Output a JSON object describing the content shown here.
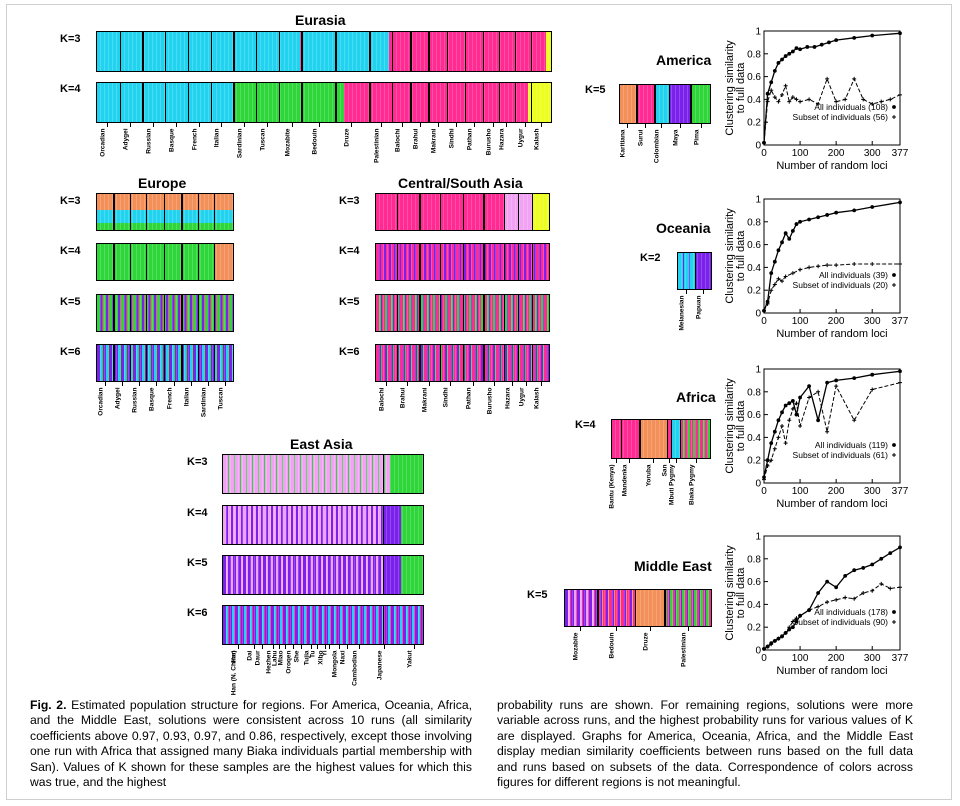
{
  "regions": {
    "eurasia": {
      "title": "Eurasia",
      "k_labels": [
        "K=3",
        "K=4"
      ],
      "populations": [
        "Orcadian",
        "Adygei",
        "Russian",
        "Basque",
        "French",
        "Italian",
        "Sardinian",
        "Tuscan",
        "Mozabite",
        "Bedouin",
        "Druze",
        "Palestinian",
        "Balochi",
        "Brahui",
        "Makrani",
        "Sindhi",
        "Pathan",
        "Burusho",
        "Hazara",
        "Uygur",
        "Kalash"
      ]
    },
    "europe": {
      "title": "Europe",
      "k_labels": [
        "K=3",
        "K=4",
        "K=5",
        "K=6"
      ],
      "populations": [
        "Orcadian",
        "Adygei",
        "Russian",
        "Basque",
        "French",
        "Italian",
        "Sardinian",
        "Tuscan"
      ]
    },
    "central_south_asia": {
      "title": "Central/South Asia",
      "k_labels": [
        "K=3",
        "K=4",
        "K=5",
        "K=6"
      ],
      "populations": [
        "Balochi",
        "Brahui",
        "Makrani",
        "Sindhi",
        "Pathan",
        "Burusho",
        "Hazara",
        "Uygur",
        "Kalash"
      ]
    },
    "east_asia": {
      "title": "East Asia",
      "k_labels": [
        "K=3",
        "K=4",
        "K=5",
        "K=6"
      ],
      "populations": [
        "Han",
        "Han (N. China)",
        "Dai",
        "Daur",
        "Hezhen",
        "Lahu",
        "Miao",
        "Oroqen",
        "She",
        "Tujia",
        "Tu",
        "Xibo",
        "Yi",
        "Mongola",
        "Naxi",
        "Cambodian",
        "Japanese",
        "Yakut"
      ]
    },
    "america": {
      "title": "America",
      "k_label": "K=5",
      "populations": [
        "Karitiana",
        "Surui",
        "Colombian",
        "Maya",
        "Pima"
      ]
    },
    "oceania": {
      "title": "Oceania",
      "k_label": "K=2",
      "populations": [
        "Melanesian",
        "Papuan"
      ]
    },
    "africa": {
      "title": "Africa",
      "k_label": "K=4",
      "populations": [
        "Bantu (Kenya)",
        "Mandenka",
        "Yoruba",
        "San",
        "Mbuti Pygmy",
        "Biaka Pygmy"
      ]
    },
    "middle_east": {
      "title": "Middle East",
      "k_label": "K=5",
      "populations": [
        "Mozabite",
        "Bedouin",
        "Druze",
        "Palestinian"
      ]
    }
  },
  "chart_data": [
    {
      "type": "line",
      "region": "America",
      "ylabel": "Clustering similarity to full data",
      "xlabel": "Number of random loci",
      "xticks": [
        "0",
        "100",
        "200",
        "300",
        "377"
      ],
      "yticks": [
        "0",
        "0.2",
        "0.4",
        "0.6",
        "0.8",
        "1"
      ],
      "xlim": [
        0,
        377
      ],
      "ylim": [
        0,
        1
      ],
      "series": [
        {
          "name": "All individuals (108)",
          "style": "solid",
          "x": [
            0,
            10,
            20,
            30,
            40,
            50,
            60,
            70,
            80,
            90,
            100,
            120,
            140,
            160,
            180,
            200,
            250,
            300,
            377
          ],
          "y": [
            0.02,
            0.45,
            0.55,
            0.65,
            0.72,
            0.75,
            0.78,
            0.8,
            0.82,
            0.85,
            0.84,
            0.86,
            0.86,
            0.88,
            0.9,
            0.92,
            0.94,
            0.96,
            0.98
          ]
        },
        {
          "name": "Subset of individuals (56)",
          "style": "dashed",
          "x": [
            0,
            10,
            20,
            30,
            40,
            50,
            60,
            70,
            80,
            90,
            100,
            125,
            150,
            175,
            200,
            225,
            250,
            275,
            300,
            325,
            350,
            377
          ],
          "y": [
            0.02,
            0.38,
            0.48,
            0.42,
            0.38,
            0.44,
            0.52,
            0.38,
            0.42,
            0.4,
            0.38,
            0.4,
            0.36,
            0.58,
            0.38,
            0.4,
            0.58,
            0.4,
            0.36,
            0.38,
            0.4,
            0.44
          ]
        }
      ]
    },
    {
      "type": "line",
      "region": "Oceania",
      "ylabel": "Clustering similarity to full data",
      "xlabel": "Number of random loci",
      "xticks": [
        "0",
        "100",
        "200",
        "300",
        "377"
      ],
      "yticks": [
        "0",
        "0.2",
        "0.4",
        "0.6",
        "0.8",
        "1"
      ],
      "xlim": [
        0,
        377
      ],
      "ylim": [
        0,
        1
      ],
      "series": [
        {
          "name": "All individuals (39)",
          "style": "solid",
          "x": [
            0,
            10,
            20,
            30,
            40,
            50,
            60,
            70,
            80,
            90,
            100,
            125,
            150,
            175,
            200,
            250,
            300,
            377
          ],
          "y": [
            0.02,
            0.1,
            0.35,
            0.45,
            0.55,
            0.62,
            0.7,
            0.65,
            0.72,
            0.78,
            0.8,
            0.82,
            0.84,
            0.86,
            0.88,
            0.9,
            0.93,
            0.97
          ]
        },
        {
          "name": "Subset of individuals (20)",
          "style": "dashed",
          "x": [
            0,
            10,
            20,
            30,
            40,
            50,
            60,
            80,
            100,
            125,
            150,
            175,
            200,
            250,
            300,
            377
          ],
          "y": [
            0.02,
            0.08,
            0.2,
            0.25,
            0.3,
            0.28,
            0.32,
            0.35,
            0.38,
            0.4,
            0.41,
            0.42,
            0.42,
            0.43,
            0.43,
            0.43
          ]
        }
      ]
    },
    {
      "type": "line",
      "region": "Africa",
      "ylabel": "Clustering similarity to full data",
      "xlabel": "Number of random loci",
      "xticks": [
        "0",
        "100",
        "200",
        "300",
        "377"
      ],
      "yticks": [
        "0",
        "0.2",
        "0.4",
        "0.6",
        "0.8",
        "1"
      ],
      "xlim": [
        0,
        377
      ],
      "ylim": [
        0,
        1
      ],
      "series": [
        {
          "name": "All individuals (119)",
          "style": "solid",
          "x": [
            0,
            10,
            20,
            30,
            40,
            50,
            60,
            70,
            80,
            90,
            100,
            125,
            150,
            175,
            200,
            250,
            300,
            377
          ],
          "y": [
            0.05,
            0.2,
            0.35,
            0.45,
            0.55,
            0.62,
            0.68,
            0.7,
            0.72,
            0.6,
            0.75,
            0.85,
            0.55,
            0.88,
            0.9,
            0.92,
            0.95,
            0.98
          ]
        },
        {
          "name": "Subset of individuals (61)",
          "style": "dashed",
          "x": [
            0,
            10,
            20,
            30,
            40,
            50,
            60,
            70,
            80,
            90,
            100,
            125,
            150,
            175,
            200,
            250,
            300,
            377
          ],
          "y": [
            0.03,
            0.15,
            0.2,
            0.3,
            0.4,
            0.5,
            0.35,
            0.55,
            0.65,
            0.7,
            0.5,
            0.75,
            0.8,
            0.45,
            0.85,
            0.55,
            0.82,
            0.88
          ]
        }
      ]
    },
    {
      "type": "line",
      "region": "Middle East",
      "ylabel": "Clustering similarity to full data",
      "xlabel": "Number of random loci",
      "xticks": [
        "0",
        "100",
        "200",
        "300",
        "377"
      ],
      "yticks": [
        "0",
        "0.2",
        "0.4",
        "0.6",
        "0.8",
        "1"
      ],
      "xlim": [
        0,
        377
      ],
      "ylim": [
        0,
        1
      ],
      "series": [
        {
          "name": "All individuals (178)",
          "style": "solid",
          "x": [
            0,
            10,
            20,
            30,
            40,
            50,
            60,
            70,
            80,
            90,
            100,
            125,
            150,
            175,
            200,
            225,
            250,
            275,
            300,
            325,
            350,
            377
          ],
          "y": [
            0.01,
            0.03,
            0.06,
            0.08,
            0.1,
            0.12,
            0.15,
            0.18,
            0.2,
            0.25,
            0.3,
            0.35,
            0.5,
            0.6,
            0.55,
            0.65,
            0.7,
            0.72,
            0.75,
            0.8,
            0.85,
            0.9
          ]
        },
        {
          "name": "Subset of individuals (90)",
          "style": "dashed",
          "x": [
            0,
            10,
            20,
            30,
            40,
            50,
            60,
            70,
            80,
            90,
            100,
            125,
            150,
            175,
            200,
            225,
            250,
            275,
            300,
            325,
            350,
            377
          ],
          "y": [
            0.01,
            0.03,
            0.05,
            0.08,
            0.1,
            0.12,
            0.15,
            0.2,
            0.25,
            0.28,
            0.3,
            0.35,
            0.38,
            0.42,
            0.44,
            0.46,
            0.45,
            0.5,
            0.52,
            0.58,
            0.54,
            0.55
          ]
        }
      ]
    }
  ],
  "caption": {
    "label": "Fig. 2.",
    "col1": " Estimated population structure for regions. For America, Oceania, Africa, and the Middle East, solutions were consistent across 10 runs (all similarity coefficients above 0.97, 0.93, 0.97, and 0.86, respectively, except those involving one run with Africa that assigned many Biaka individuals partial membership with San). Values of K shown for these samples are the highest values for which this was true, and the highest",
    "col2": "probability runs are shown. For remaining regions, solutions were more variable across runs, and the highest probability runs for various values of K are displayed. Graphs for America, Oceania, Africa, and the Middle East display median similarity coefficients between runs based on the full data and runs based on subsets of the data. Correspondence of colors across figures for different regions is not meaningful."
  }
}
